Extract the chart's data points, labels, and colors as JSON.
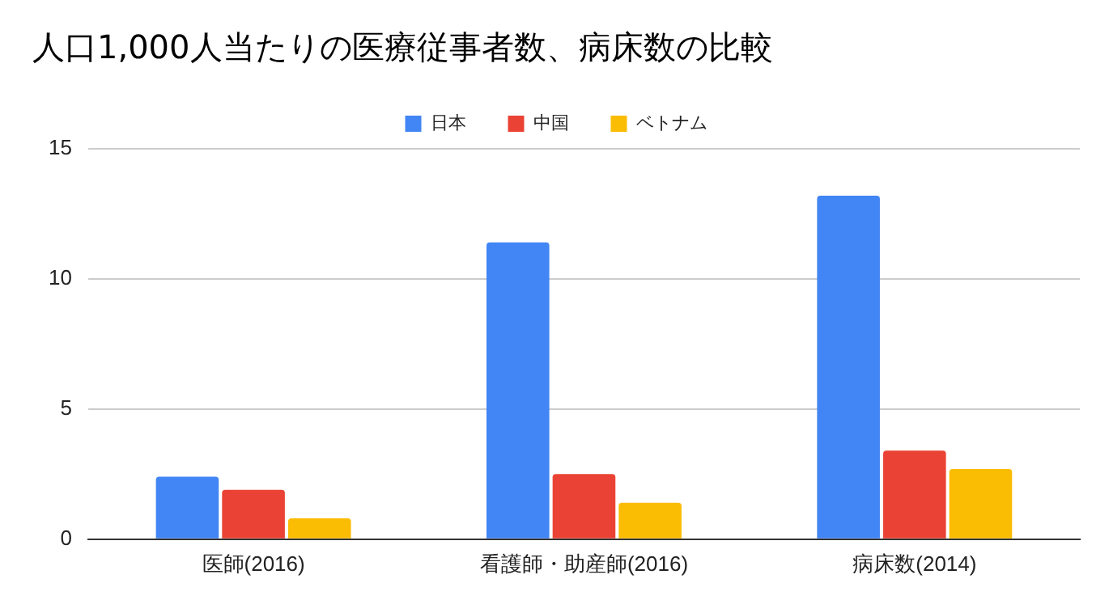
{
  "chart_data": {
    "type": "bar",
    "title": "人口1,000人当たりの医療従事者数、病床数の比較",
    "categories": [
      "医師(2016)",
      "看護師・助産師(2016)",
      "病床数(2014)"
    ],
    "series": [
      {
        "name": "日本",
        "color": "#4285f4",
        "values": [
          2.4,
          11.4,
          13.2
        ]
      },
      {
        "name": "中国",
        "color": "#ea4335",
        "values": [
          1.9,
          2.5,
          3.4
        ]
      },
      {
        "name": "ベトナム",
        "color": "#fbbc04",
        "values": [
          0.8,
          1.4,
          2.7
        ]
      }
    ],
    "ylim": [
      0,
      15
    ],
    "yticks": [
      0,
      5,
      10,
      15
    ],
    "grid": "y",
    "legend": "top"
  }
}
